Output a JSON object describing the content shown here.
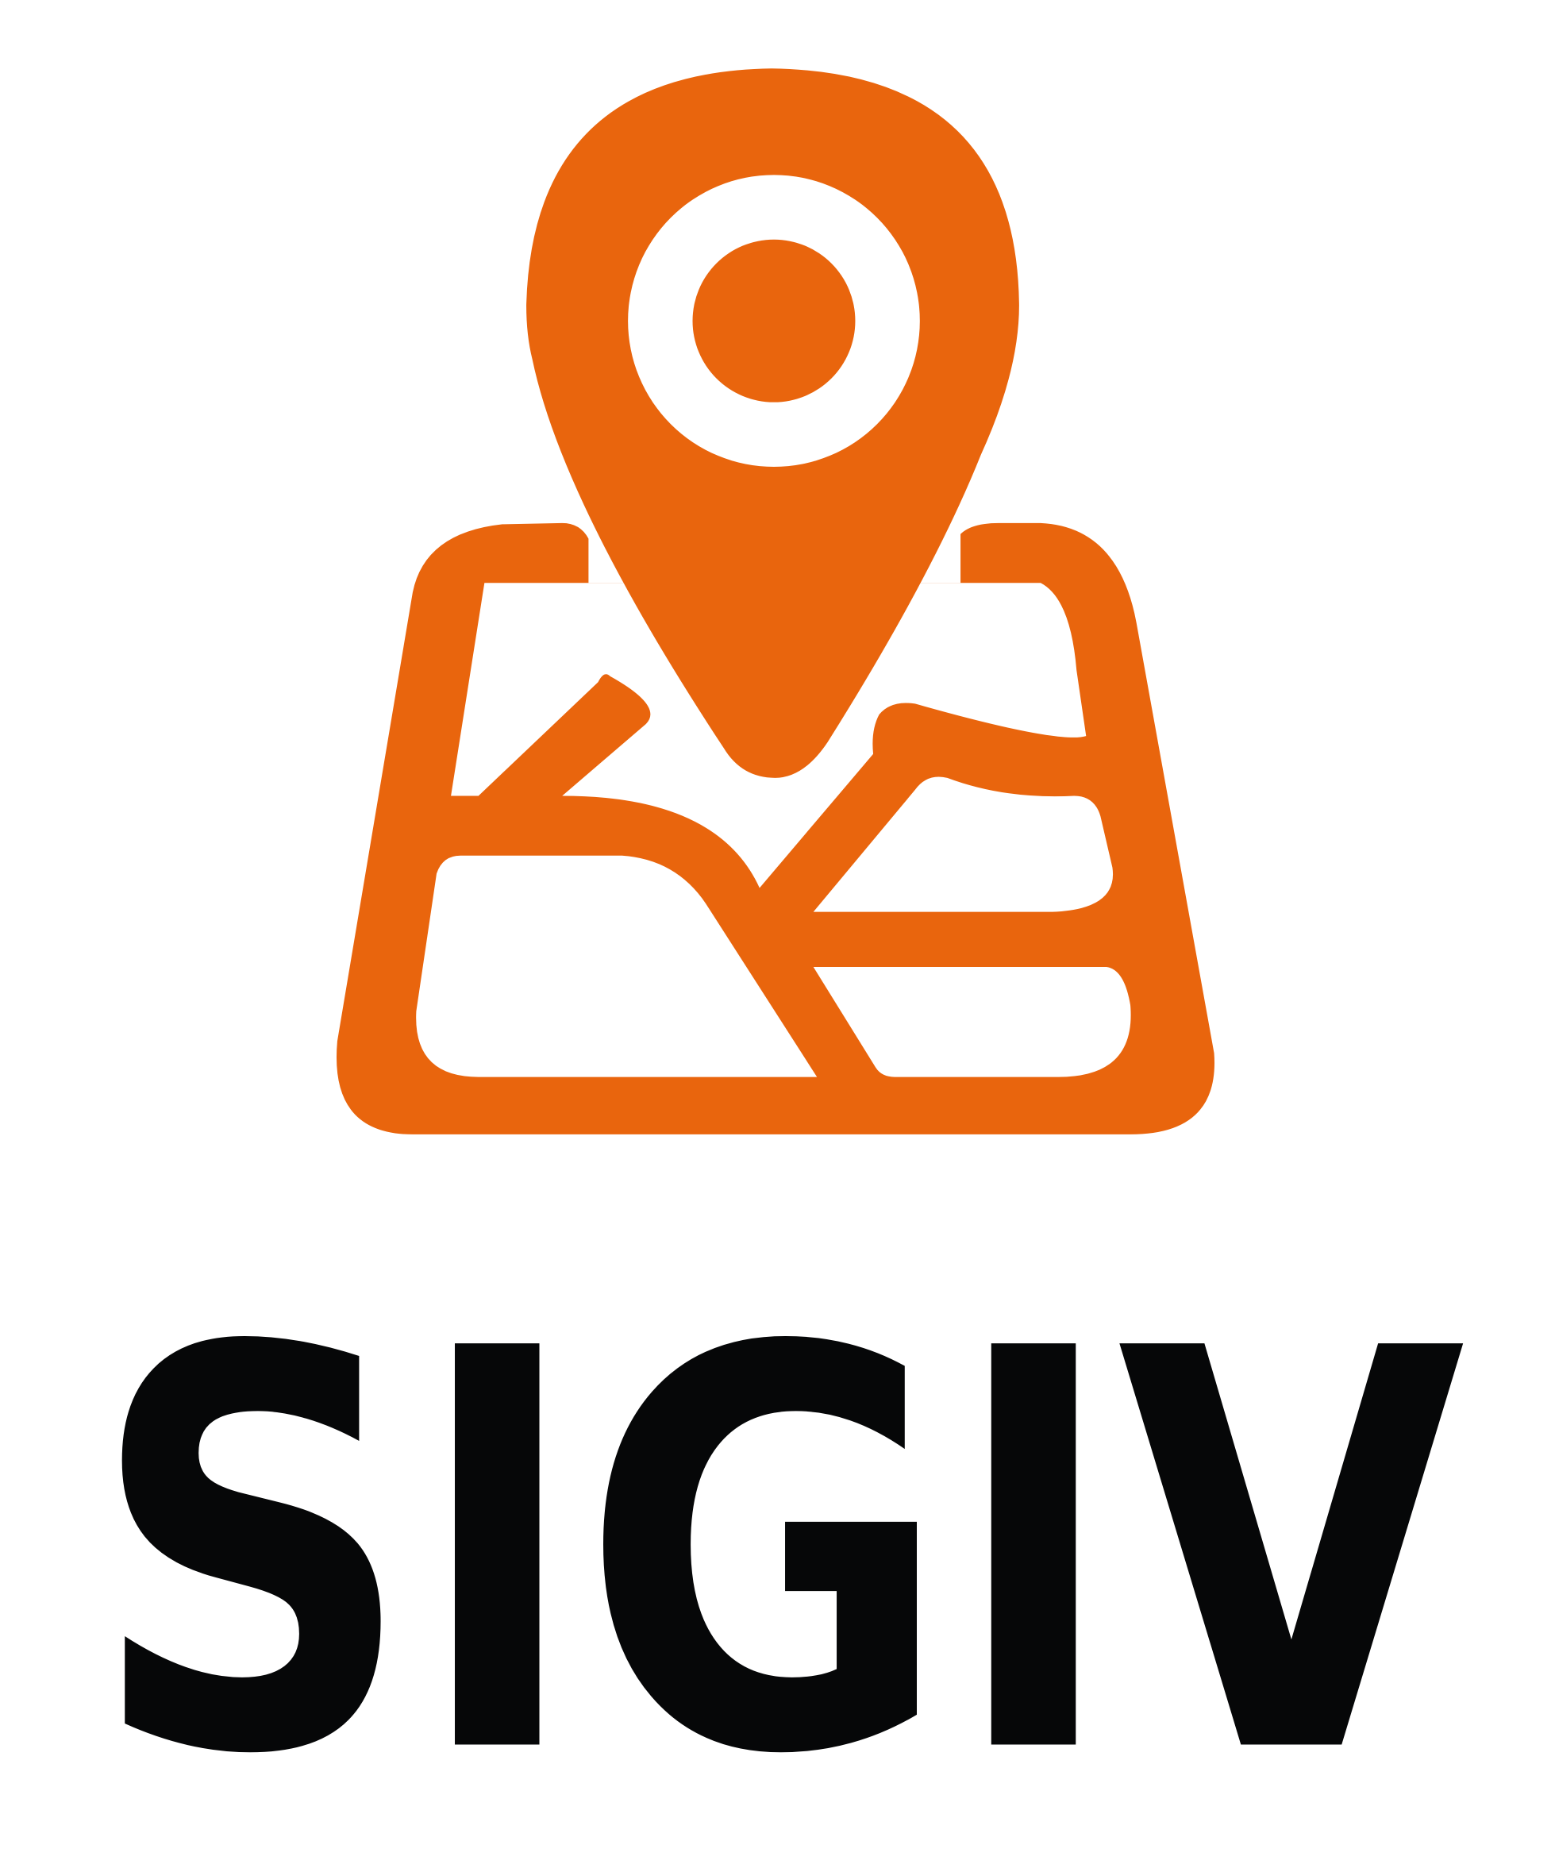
{
  "logo": {
    "text": "SIGIV"
  }
}
